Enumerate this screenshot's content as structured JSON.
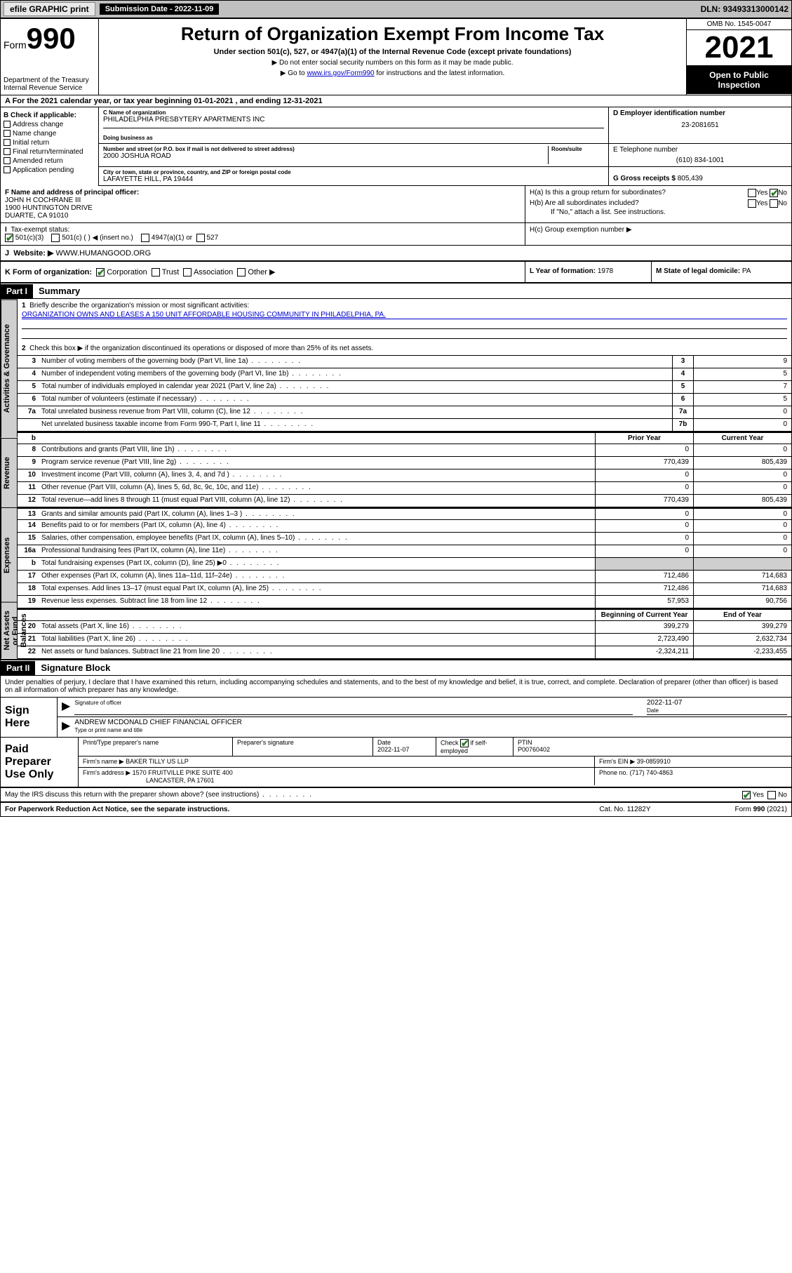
{
  "topbar": {
    "efile": "efile GRAPHIC print",
    "submission": "Submission Date - 2022-11-09",
    "dln": "DLN: 93493313000142"
  },
  "header": {
    "form": "Form",
    "form_no": "990",
    "dept": "Department of the Treasury",
    "irs": "Internal Revenue Service",
    "title": "Return of Organization Exempt From Income Tax",
    "sub": "Under section 501(c), 527, or 4947(a)(1) of the Internal Revenue Code (except private foundations)",
    "note1": "▶ Do not enter social security numbers on this form as it may be made public.",
    "note2_pre": "▶ Go to ",
    "note2_link": "www.irs.gov/Form990",
    "note2_post": " for instructions and the latest information.",
    "omb": "OMB No. 1545-0047",
    "year": "2021",
    "inspect": "Open to Public Inspection"
  },
  "line_a": "A For the 2021 calendar year, or tax year beginning 01-01-2021   , and ending 12-31-2021",
  "col_b": {
    "hdr": "B Check if applicable:",
    "items": [
      "Address change",
      "Name change",
      "Initial return",
      "Final return/terminated",
      "Amended return",
      "Application pending"
    ]
  },
  "col_c": {
    "name_lbl": "C Name of organization",
    "name": "PHILADELPHIA PRESBYTERY APARTMENTS INC",
    "dba_lbl": "Doing business as",
    "dba": "",
    "addr_lbl": "Number and street (or P.O. box if mail is not delivered to street address)",
    "room_lbl": "Room/suite",
    "addr": "2000 JOSHUA ROAD",
    "city_lbl": "City or town, state or province, country, and ZIP or foreign postal code",
    "city": "LAFAYETTE HILL, PA  19444"
  },
  "col_d": {
    "ein_lbl": "D Employer identification number",
    "ein": "23-2081651",
    "tel_lbl": "E Telephone number",
    "tel": "(610) 834-1001",
    "gross_lbl": "G Gross receipts $",
    "gross": "805,439"
  },
  "row_f": {
    "lbl": "F Name and address of principal officer:",
    "name": "JOHN H COCHRANE III",
    "addr1": "1900 HUNTINGTON DRIVE",
    "addr2": "DUARTE, CA  91010"
  },
  "row_h": {
    "ha": "H(a)  Is this a group return for subordinates?",
    "hb": "H(b)  Are all subordinates included?",
    "hb_note": "If \"No,\" attach a list. See instructions.",
    "hc": "H(c)  Group exemption number ▶",
    "yes": "Yes",
    "no": "No"
  },
  "row_i": {
    "lbl": "Tax-exempt status:",
    "opt1": "501(c)(3)",
    "opt2": "501(c) (   ) ◀ (insert no.)",
    "opt3": "4947(a)(1) or",
    "opt4": "527"
  },
  "row_j": {
    "lbl": "Website: ▶",
    "val": "WWW.HUMANGOOD.ORG"
  },
  "row_k": {
    "lbl": "K Form of organization:",
    "opts": [
      "Corporation",
      "Trust",
      "Association",
      "Other ▶"
    ]
  },
  "row_l": {
    "lbl": "L Year of formation:",
    "val": "1978"
  },
  "row_m": {
    "lbl": "M State of legal domicile:",
    "val": "PA"
  },
  "part1": {
    "hdr": "Part I",
    "title": "Summary"
  },
  "mission": {
    "lbl": "Briefly describe the organization's mission or most significant activities:",
    "txt": "ORGANIZATION OWNS AND LEASES A 150 UNIT AFFORDABLE HOUSING COMMUNITY IN PHILADELPHIA, PA."
  },
  "line2": "Check this box ▶     if the organization discontinued its operations or disposed of more than 25% of its net assets.",
  "gov_lines": [
    {
      "n": "3",
      "txt": "Number of voting members of the governing body (Part VI, line 1a)",
      "box": "3",
      "val": "9"
    },
    {
      "n": "4",
      "txt": "Number of independent voting members of the governing body (Part VI, line 1b)",
      "box": "4",
      "val": "5"
    },
    {
      "n": "5",
      "txt": "Total number of individuals employed in calendar year 2021 (Part V, line 2a)",
      "box": "5",
      "val": "7"
    },
    {
      "n": "6",
      "txt": "Total number of volunteers (estimate if necessary)",
      "box": "6",
      "val": "5"
    },
    {
      "n": "7a",
      "txt": "Total unrelated business revenue from Part VIII, column (C), line 12",
      "box": "7a",
      "val": "0"
    },
    {
      "n": "",
      "txt": "Net unrelated business taxable income from Form 990-T, Part I, line 11",
      "box": "7b",
      "val": "0"
    }
  ],
  "two_col_hdr": {
    "prior": "Prior Year",
    "current": "Current Year"
  },
  "revenue": [
    {
      "n": "8",
      "txt": "Contributions and grants (Part VIII, line 1h)",
      "p": "0",
      "c": "0"
    },
    {
      "n": "9",
      "txt": "Program service revenue (Part VIII, line 2g)",
      "p": "770,439",
      "c": "805,439"
    },
    {
      "n": "10",
      "txt": "Investment income (Part VIII, column (A), lines 3, 4, and 7d )",
      "p": "0",
      "c": "0"
    },
    {
      "n": "11",
      "txt": "Other revenue (Part VIII, column (A), lines 5, 6d, 8c, 9c, 10c, and 11e)",
      "p": "0",
      "c": "0"
    },
    {
      "n": "12",
      "txt": "Total revenue—add lines 8 through 11 (must equal Part VIII, column (A), line 12)",
      "p": "770,439",
      "c": "805,439"
    }
  ],
  "expenses": [
    {
      "n": "13",
      "txt": "Grants and similar amounts paid (Part IX, column (A), lines 1–3 )",
      "p": "0",
      "c": "0"
    },
    {
      "n": "14",
      "txt": "Benefits paid to or for members (Part IX, column (A), line 4)",
      "p": "0",
      "c": "0"
    },
    {
      "n": "15",
      "txt": "Salaries, other compensation, employee benefits (Part IX, column (A), lines 5–10)",
      "p": "0",
      "c": "0"
    },
    {
      "n": "16a",
      "txt": "Professional fundraising fees (Part IX, column (A), line 11e)",
      "p": "0",
      "c": "0"
    },
    {
      "n": "b",
      "txt": "Total fundraising expenses (Part IX, column (D), line 25) ▶0",
      "p": "",
      "c": "",
      "grey": true
    },
    {
      "n": "17",
      "txt": "Other expenses (Part IX, column (A), lines 11a–11d, 11f–24e)",
      "p": "712,486",
      "c": "714,683"
    },
    {
      "n": "18",
      "txt": "Total expenses. Add lines 13–17 (must equal Part IX, column (A), line 25)",
      "p": "712,486",
      "c": "714,683"
    },
    {
      "n": "19",
      "txt": "Revenue less expenses. Subtract line 18 from line 12",
      "p": "57,953",
      "c": "90,756"
    }
  ],
  "net_hdr": {
    "begin": "Beginning of Current Year",
    "end": "End of Year"
  },
  "net": [
    {
      "n": "20",
      "txt": "Total assets (Part X, line 16)",
      "p": "399,279",
      "c": "399,279"
    },
    {
      "n": "21",
      "txt": "Total liabilities (Part X, line 26)",
      "p": "2,723,490",
      "c": "2,632,734"
    },
    {
      "n": "22",
      "txt": "Net assets or fund balances. Subtract line 21 from line 20",
      "p": "-2,324,211",
      "c": "-2,233,455"
    }
  ],
  "part2": {
    "hdr": "Part II",
    "title": "Signature Block"
  },
  "declare": "Under penalties of perjury, I declare that I have examined this return, including accompanying schedules and statements, and to the best of my knowledge and belief, it is true, correct, and complete. Declaration of preparer (other than officer) is based on all information of which preparer has any knowledge.",
  "sign": {
    "here": "Sign Here",
    "sig_lbl": "Signature of officer",
    "date_lbl": "Date",
    "date": "2022-11-07",
    "name": "ANDREW MCDONALD CHIEF FINANCIAL OFFICER",
    "name_lbl": "Type or print name and title"
  },
  "prep": {
    "lbl": "Paid Preparer Use Only",
    "h1": "Print/Type preparer's name",
    "h2": "Preparer's signature",
    "h3": "Date",
    "h4": "Check",
    "h4b": "if self-employed",
    "h5": "PTIN",
    "date": "2022-11-07",
    "ptin": "P00760402",
    "firm_lbl": "Firm's name   ▶",
    "firm": "BAKER TILLY US LLP",
    "ein_lbl": "Firm's EIN ▶",
    "ein": "39-0859910",
    "addr_lbl": "Firm's address ▶",
    "addr1": "1570 FRUITVILLE PIKE SUITE 400",
    "addr2": "LANCASTER, PA  17601",
    "ph_lbl": "Phone no.",
    "ph": "(717) 740-4863"
  },
  "may_discuss": "May the IRS discuss this return with the preparer shown above? (see instructions)",
  "footer": {
    "l": "For Paperwork Reduction Act Notice, see the separate instructions.",
    "m": "Cat. No. 11282Y",
    "r": "Form 990 (2021)"
  },
  "side_labels": {
    "gov": "Activities & Governance",
    "rev": "Revenue",
    "exp": "Expenses",
    "net": "Net Assets or Fund Balances"
  }
}
